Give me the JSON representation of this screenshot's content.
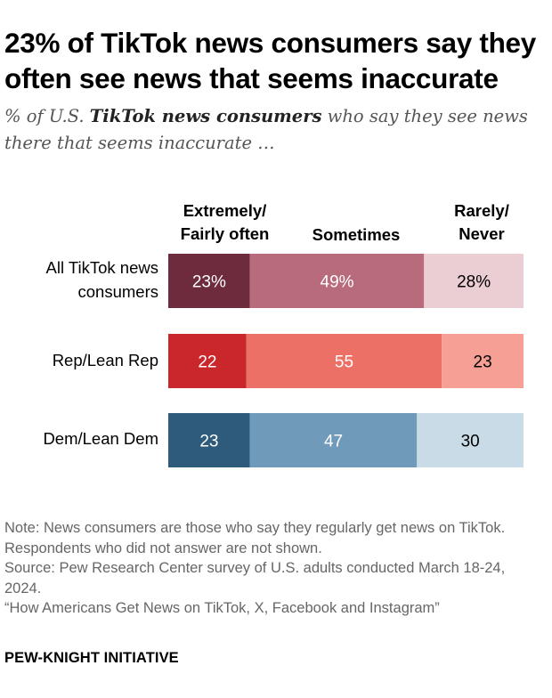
{
  "header": {
    "title": "23% of TikTok news consumers say they often see news that seems inaccurate",
    "subtitle_pre": "% of U.S. ",
    "subtitle_bold": "TikTok news consumers",
    "subtitle_post": " who say they see news there that seems inaccurate …"
  },
  "chart_data": {
    "type": "bar",
    "orientation": "horizontal-stacked",
    "categories": [
      "All TikTok news\nconsumers",
      "Rep/Lean Rep",
      "Dem/Lean Dem"
    ],
    "series": [
      {
        "name": "Extremely/\nFairly often",
        "values": [
          23,
          22,
          23
        ]
      },
      {
        "name": "Sometimes",
        "values": [
          49,
          55,
          47
        ]
      },
      {
        "name": "Rarely/\nNever",
        "values": [
          28,
          23,
          30
        ]
      }
    ],
    "data_labels": [
      [
        "23%",
        "49%",
        "28%"
      ],
      [
        "22",
        "55",
        "23"
      ],
      [
        "23",
        "47",
        "30"
      ]
    ],
    "colors": [
      [
        "#6e2b3e",
        "#b76b7b",
        "#ebcdd4"
      ],
      [
        "#c9272b",
        "#ec7066",
        "#f6a095"
      ],
      [
        "#2e5b7b",
        "#6f9ab9",
        "#c9dbe6"
      ]
    ],
    "label_colors": [
      [
        "#ffffff",
        "#ffffff",
        "#000000"
      ],
      [
        "#ffffff",
        "#ffffff",
        "#000000"
      ],
      [
        "#ffffff",
        "#ffffff",
        "#000000"
      ]
    ],
    "xlim": [
      0,
      100
    ]
  },
  "footer": {
    "note": "Note: News consumers are those who say they regularly get news on TikTok. Respondents who did not answer are not shown.",
    "source": "Source: Pew Research Center survey of U.S. adults conducted March 18-24, 2024.",
    "report": "“How Americans Get News on TikTok, X, Facebook and Instagram”",
    "brand": "PEW-KNIGHT INITIATIVE"
  }
}
